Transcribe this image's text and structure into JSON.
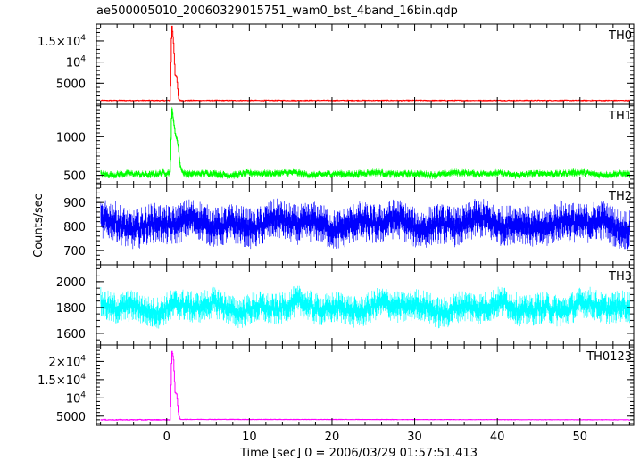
{
  "chart_data": {
    "type": "line",
    "title": "ae500005010_20060329015751_wam0_bst_4band_16bin.qdp",
    "xlabel": "Time [sec] 0 = 2006/03/29 01:57:51.413",
    "ylabel": "Counts/sec",
    "xlim": [
      -8.5,
      56.5
    ],
    "x_ticks": [
      0,
      10,
      20,
      30,
      40,
      50
    ],
    "x_tick_labels": [
      "0",
      "10",
      "20",
      "30",
      "40",
      "50"
    ],
    "grid": false,
    "legend": "none",
    "panels": [
      {
        "name": "TH0",
        "color": "#ff0000",
        "ylim": [
          0,
          19000
        ],
        "y_ticks": [
          5000,
          10000,
          15000
        ],
        "y_tick_labels": [
          {
            "m": "5000",
            "e": ""
          },
          {
            "m": "10",
            "e": "4"
          },
          {
            "m": "1.5×10",
            "e": "4"
          }
        ],
        "baseline": 900,
        "noise": 90,
        "errbar": 0,
        "osc": 0,
        "x": [
          -8,
          0.4,
          0.6,
          0.8,
          1.0,
          1.2,
          1.4,
          1.6,
          56
        ],
        "y": [
          900,
          900,
          19000,
          15000,
          7000,
          6500,
          1400,
          900,
          900
        ]
      },
      {
        "name": "TH1",
        "color": "#00ff00",
        "ylim": [
          380,
          1420
        ],
        "y_ticks": [
          500,
          1000
        ],
        "y_tick_labels": [
          {
            "m": "500",
            "e": ""
          },
          {
            "m": "1000",
            "e": ""
          }
        ],
        "baseline": 520,
        "noise": 28,
        "errbar": 25,
        "osc": 18,
        "x": [
          -8,
          0.4,
          0.6,
          0.8,
          1.0,
          1.2,
          1.4,
          1.6,
          2.0,
          56
        ],
        "y": [
          520,
          520,
          1400,
          1200,
          1050,
          980,
          850,
          620,
          520,
          520
        ]
      },
      {
        "name": "TH2",
        "color": "#0000ff",
        "ylim": [
          640,
          975
        ],
        "y_ticks": [
          700,
          800,
          900
        ],
        "y_tick_labels": [
          {
            "m": "700",
            "e": ""
          },
          {
            "m": "800",
            "e": ""
          },
          {
            "m": "900",
            "e": ""
          }
        ],
        "baseline": 810,
        "noise": 40,
        "errbar": 45,
        "osc": 25,
        "x": [
          -8,
          56
        ],
        "y": [
          810,
          810
        ]
      },
      {
        "name": "TH3",
        "color": "#00ffff",
        "ylim": [
          1510,
          2130
        ],
        "y_ticks": [
          1600,
          1800,
          2000
        ],
        "y_tick_labels": [
          {
            "m": "1600",
            "e": ""
          },
          {
            "m": "1800",
            "e": ""
          },
          {
            "m": "2000",
            "e": ""
          }
        ],
        "baseline": 1800,
        "noise": 60,
        "errbar": 65,
        "osc": 45,
        "x": [
          -8,
          56
        ],
        "y": [
          1800,
          1800
        ]
      },
      {
        "name": "TH0123",
        "color": "#ff00ff",
        "ylim": [
          2500,
          24500
        ],
        "y_ticks": [
          5000,
          10000,
          15000,
          20000
        ],
        "y_tick_labels": [
          {
            "m": "5000",
            "e": ""
          },
          {
            "m": "10",
            "e": "4"
          },
          {
            "m": "1.5×10",
            "e": "4"
          },
          {
            "m": "2×10",
            "e": "4"
          }
        ],
        "baseline": 4000,
        "noise": 110,
        "errbar": 0,
        "osc": 0,
        "x": [
          -8,
          0.4,
          0.6,
          0.8,
          1.0,
          1.2,
          1.4,
          1.6,
          56
        ],
        "y": [
          4000,
          4000,
          23000,
          21000,
          11500,
          11000,
          5500,
          4100,
          4000
        ]
      }
    ]
  }
}
